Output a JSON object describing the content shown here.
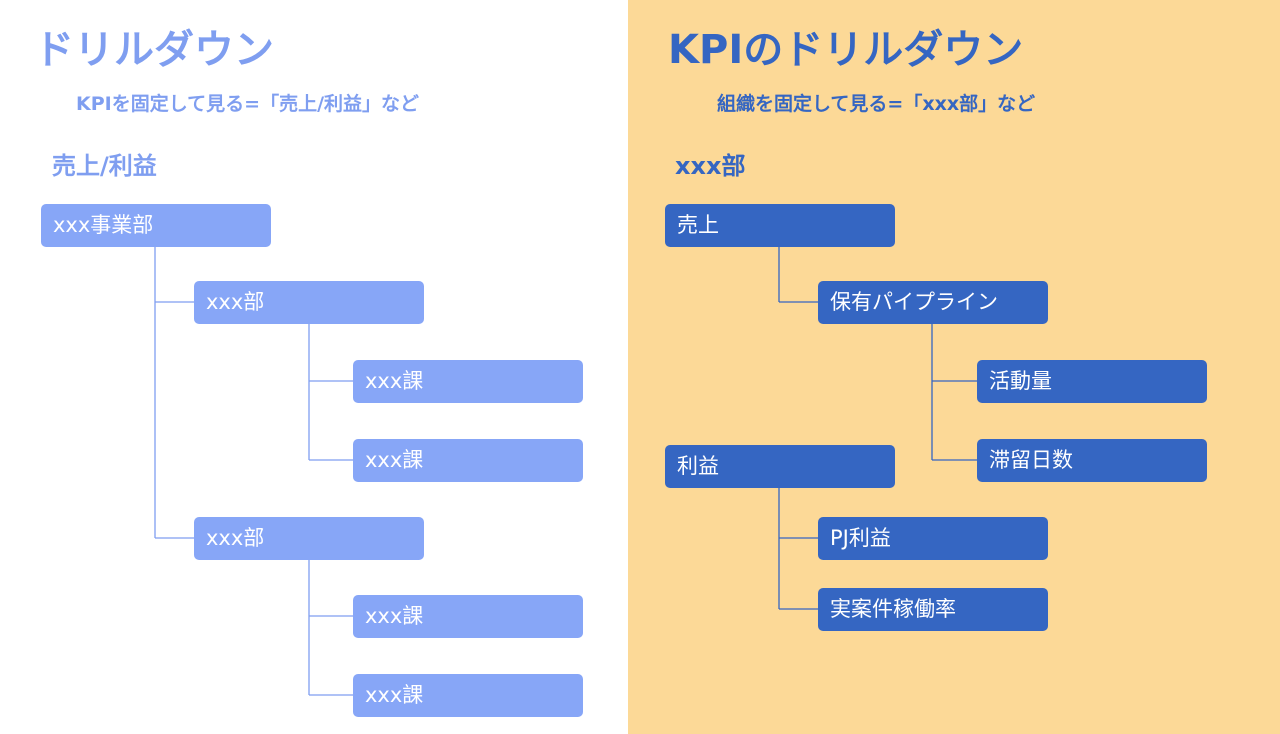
{
  "left": {
    "title": "ドリルダウン",
    "subtitle": "KPIを固定して見る=「売上/利益」など",
    "section": "売上/利益",
    "nodes": [
      "xxx事業部",
      "xxx部",
      "xxx課",
      "xxx課",
      "xxx部",
      "xxx課",
      "xxx課"
    ]
  },
  "right": {
    "title": "KPIのドリルダウン",
    "subtitle": "組織を固定して見る=「xxx部」など",
    "section": "xxx部",
    "nodes": [
      "売上",
      "保有パイプライン",
      "活動量",
      "滞留日数",
      "利益",
      "PJ利益",
      "実案件稼働率"
    ]
  },
  "colors": {
    "left_text": "#7f9ef0",
    "left_node": "#87a6f7",
    "right_text": "#3566c2",
    "right_node": "#3566c2",
    "right_background": "#fcd997"
  }
}
